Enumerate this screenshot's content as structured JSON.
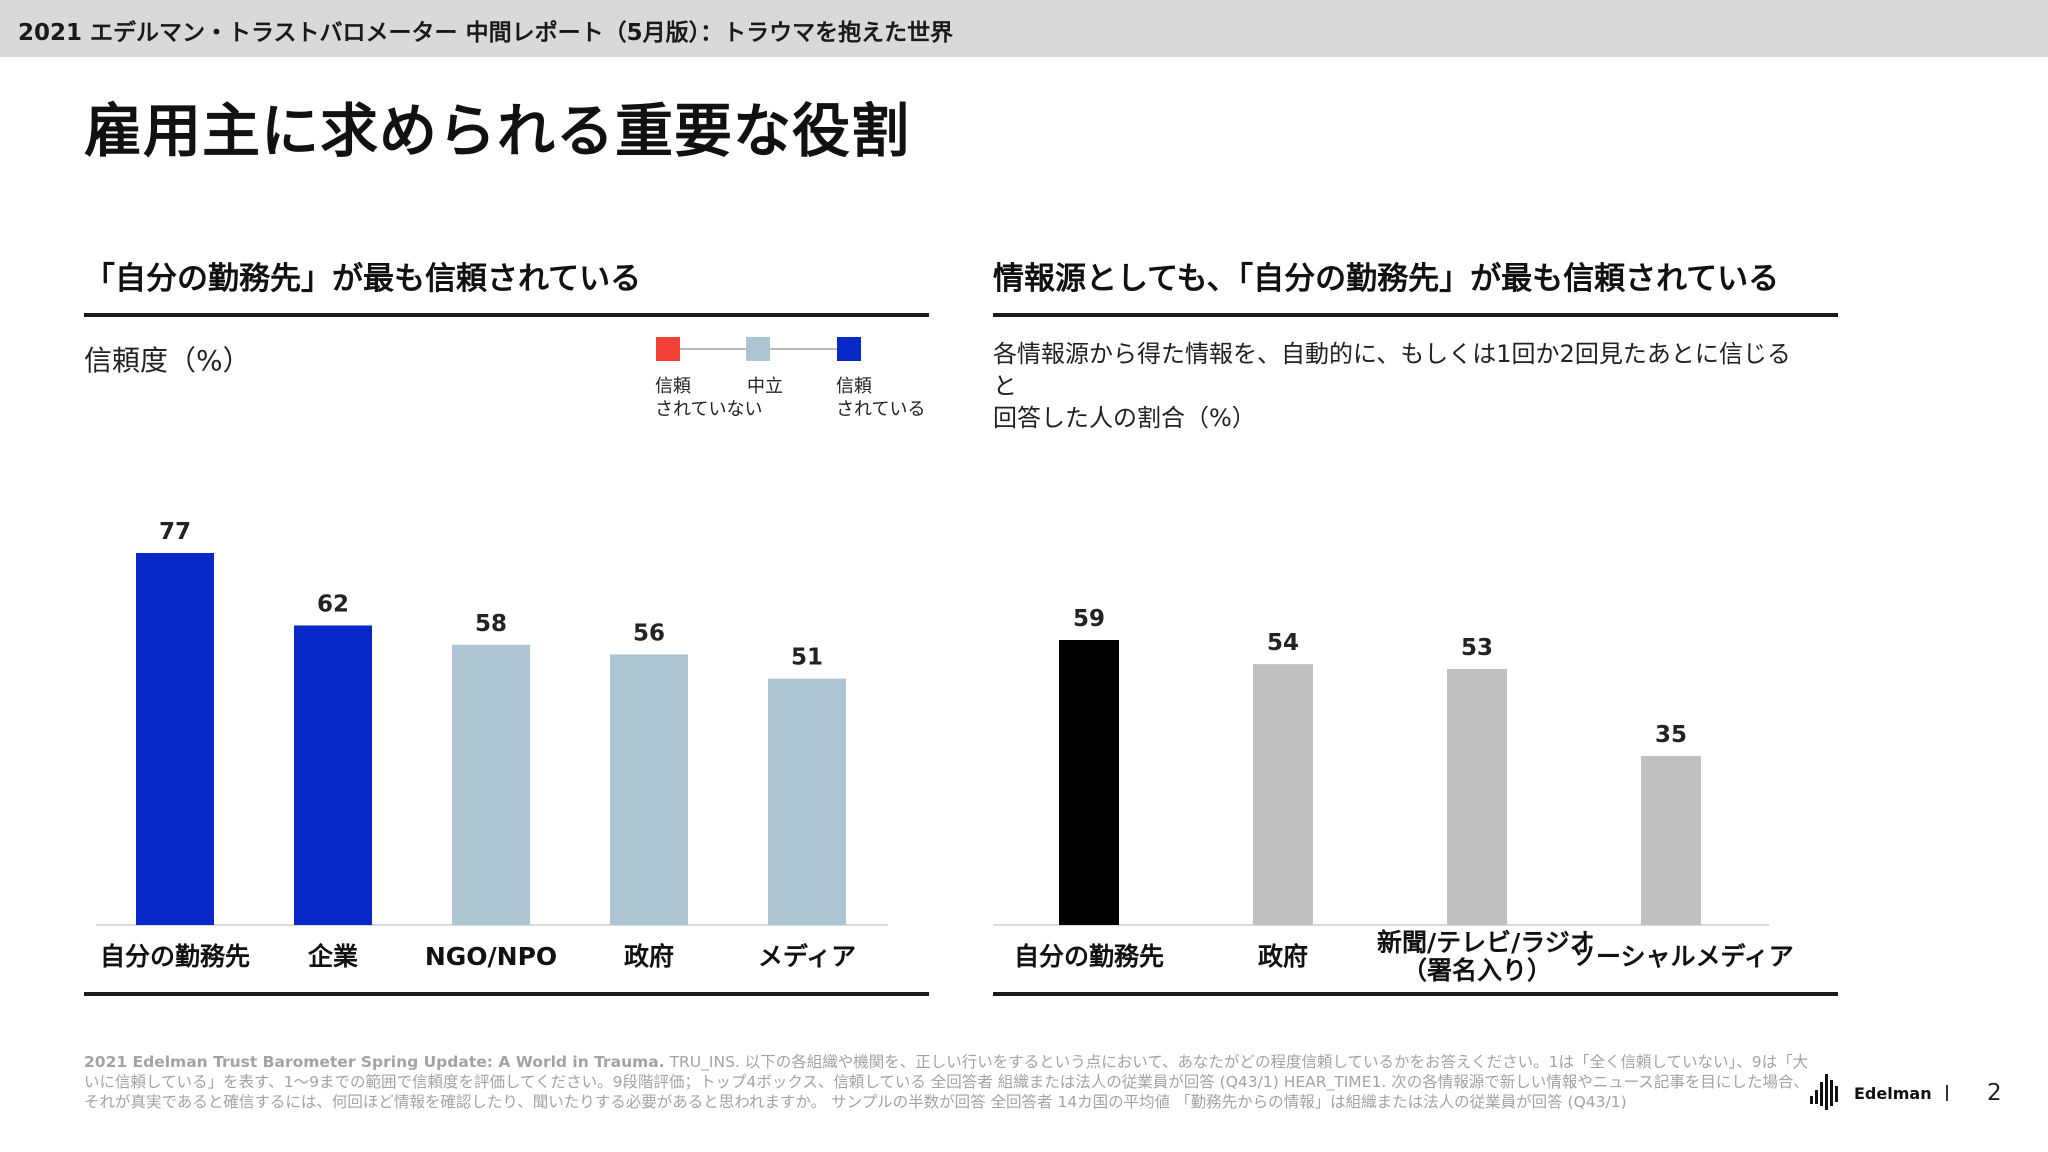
{
  "header": {
    "report_title": "2021 エデルマン・トラストバロメーター 中間レポート（5月版）：トラウマを抱えた世界"
  },
  "page_title": "雇用主に求められる重要な役割",
  "left_section": {
    "title": "「自分の勤務先」が最も信頼されている",
    "subtitle": "信頼度（%）",
    "legend": {
      "items": [
        {
          "label_line1": "信頼",
          "label_line2": "されていない",
          "color": "#f44336"
        },
        {
          "label_line1": "中立",
          "label_line2": "",
          "color": "#adc5d2"
        },
        {
          "label_line1": "信頼",
          "label_line2": "されている",
          "color": "#0928c8"
        }
      ]
    }
  },
  "right_section": {
    "title": "情報源としても、「自分の勤務先」が最も信頼されている",
    "subtitle_line1": "各情報源から得た情報を、自動的に、もしくは1回か2回見たあとに信じると",
    "subtitle_line2": "回答した人の割合（%）"
  },
  "chart_data": [
    {
      "type": "bar",
      "title": "「自分の勤務先」が最も信頼されている",
      "ylabel": "信頼度（%）",
      "categories": [
        "自分の勤務先",
        "企業",
        "NGO/NPO",
        "政府",
        "メディア"
      ],
      "values": [
        77,
        62,
        58,
        56,
        51
      ],
      "colors": [
        "#0928c8",
        "#0928c8",
        "#adc5d2",
        "#adc5d2",
        "#adc5d2"
      ],
      "ylim": [
        0,
        77
      ],
      "grid": false
    },
    {
      "type": "bar",
      "title": "情報源としても、「自分の勤務先」が最も信頼されている",
      "ylabel": "回答した人の割合（%）",
      "categories": [
        "自分の勤務先",
        "政府",
        "新聞/テレビ/ラジオ",
        "ソーシャルメディア"
      ],
      "category_lines": [
        [
          "自分の勤務先"
        ],
        [
          "政府"
        ],
        [
          "新聞/テレビ/ラジオ",
          "（署名入り）"
        ],
        [
          "ソーシャルメディア"
        ]
      ],
      "values": [
        59,
        54,
        53,
        35
      ],
      "colors": [
        "#000000",
        "#c1bfc0",
        "#c1bfc0",
        "#c1bfc0"
      ],
      "ylim": [
        0,
        59
      ],
      "grid": false
    }
  ],
  "footnote": {
    "bold": "2021 Edelman Trust Barometer Spring Update: A World in Trauma.",
    "text": " TRU_INS. 以下の各組織や機関を、正しい行いをするという点において、あなたがどの程度信頼しているかをお答えください。1は「全く信頼していない」、9は「大いに信頼している」を表す、1～9までの範囲で信頼度を評価してください。9段階評価；トップ4ボックス、信頼している 全回答者 組織または法人の従業員が回答 (Q43/1) HEAR_TIME1. 次の各情報源で新しい情報やニュース記事を目にした場合、それが真実であると確信するには、何回ほど情報を確認したり、聞いたりする必要があると思われますか。 サンプルの半数が回答 全回答者 14カ国の平均値 「勤務先からの情報」は組織または法人の従業員が回答 (Q43/1)"
  },
  "brand": {
    "logo_text": "Edelman"
  },
  "page_number": "2"
}
